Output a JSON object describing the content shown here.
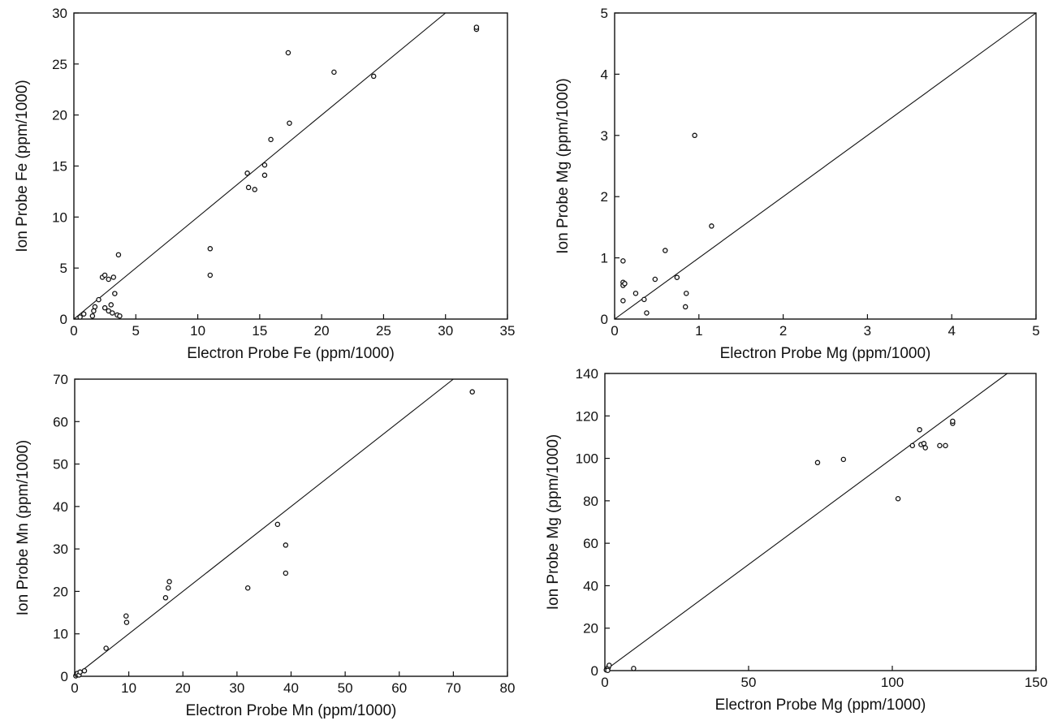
{
  "chart_data": [
    {
      "type": "scatter",
      "title": "",
      "xlabel": "Electron Probe Fe (ppm/1000)",
      "ylabel": "Ion Probe Fe (ppm/1000)",
      "xlim": [
        0,
        35
      ],
      "ylim": [
        0,
        30
      ],
      "xticks": [
        0,
        5,
        10,
        15,
        20,
        25,
        30,
        35
      ],
      "yticks": [
        0,
        5,
        10,
        15,
        20,
        25,
        30
      ],
      "grid": false,
      "reference_line": "y=x",
      "points": [
        [
          0.5,
          0.2
        ],
        [
          0.8,
          0.5
        ],
        [
          1.5,
          0.3
        ],
        [
          1.6,
          0.8
        ],
        [
          1.7,
          1.2
        ],
        [
          2.0,
          1.9
        ],
        [
          2.3,
          4.1
        ],
        [
          2.5,
          4.3
        ],
        [
          2.8,
          3.9
        ],
        [
          3.2,
          4.1
        ],
        [
          2.5,
          1.1
        ],
        [
          2.8,
          0.8
        ],
        [
          3.0,
          1.4
        ],
        [
          3.1,
          0.6
        ],
        [
          3.3,
          2.5
        ],
        [
          3.6,
          6.3
        ],
        [
          3.5,
          0.4
        ],
        [
          3.7,
          0.3
        ],
        [
          11.0,
          6.9
        ],
        [
          11.0,
          4.3
        ],
        [
          14.0,
          14.3
        ],
        [
          14.1,
          12.9
        ],
        [
          14.6,
          12.7
        ],
        [
          15.4,
          15.1
        ],
        [
          15.4,
          14.1
        ],
        [
          15.9,
          17.6
        ],
        [
          17.3,
          26.1
        ],
        [
          17.4,
          19.2
        ],
        [
          21.0,
          24.2
        ],
        [
          24.2,
          23.8
        ],
        [
          32.5,
          28.4
        ],
        [
          32.5,
          28.6
        ]
      ]
    },
    {
      "type": "scatter",
      "title": "",
      "xlabel": "Electron Probe Mg (ppm/1000)",
      "ylabel": "Ion Probe Mg (ppm/1000)",
      "xlim": [
        0,
        5
      ],
      "ylim": [
        0,
        5
      ],
      "xticks": [
        0,
        1,
        2,
        3,
        4,
        5
      ],
      "yticks": [
        0,
        1,
        2,
        3,
        4,
        5
      ],
      "grid": false,
      "reference_line": "y=x",
      "points": [
        [
          0.1,
          0.95
        ],
        [
          0.1,
          0.6
        ],
        [
          0.1,
          0.55
        ],
        [
          0.1,
          0.3
        ],
        [
          0.12,
          0.58
        ],
        [
          0.25,
          0.42
        ],
        [
          0.35,
          0.32
        ],
        [
          0.38,
          0.1
        ],
        [
          0.48,
          0.65
        ],
        [
          0.6,
          1.12
        ],
        [
          0.74,
          0.68
        ],
        [
          0.85,
          0.42
        ],
        [
          0.84,
          0.2
        ],
        [
          0.95,
          3.0
        ],
        [
          1.15,
          1.52
        ]
      ]
    },
    {
      "type": "scatter",
      "title": "",
      "xlabel": "Electron Probe Mn (ppm/1000)",
      "ylabel": "Ion Probe Mn (ppm/1000)",
      "xlim": [
        0,
        80
      ],
      "ylim": [
        0,
        70
      ],
      "xticks": [
        0,
        10,
        20,
        30,
        40,
        50,
        60,
        70,
        80
      ],
      "yticks": [
        0,
        10,
        20,
        30,
        40,
        50,
        60,
        70
      ],
      "grid": false,
      "reference_line": "y=x",
      "points": [
        [
          0.2,
          0.1
        ],
        [
          0.4,
          0.4
        ],
        [
          0.5,
          0.7
        ],
        [
          0.8,
          0.3
        ],
        [
          1.0,
          1.0
        ],
        [
          1.8,
          1.3
        ],
        [
          5.8,
          6.6
        ],
        [
          9.5,
          14.2
        ],
        [
          9.6,
          12.7
        ],
        [
          16.8,
          18.5
        ],
        [
          17.3,
          20.8
        ],
        [
          17.5,
          22.3
        ],
        [
          32.0,
          20.8
        ],
        [
          37.5,
          35.8
        ],
        [
          39.0,
          30.9
        ],
        [
          39.0,
          24.3
        ],
        [
          73.5,
          67.0
        ]
      ]
    },
    {
      "type": "scatter",
      "title": "",
      "xlabel": "Electron Probe Mg (ppm/1000)",
      "ylabel": "Ion Probe Mg (ppm/1000)",
      "xlim": [
        0,
        150
      ],
      "ylim": [
        0,
        140
      ],
      "xticks": [
        0,
        50,
        100,
        150
      ],
      "yticks": [
        0,
        20,
        40,
        60,
        80,
        100,
        120,
        140
      ],
      "grid": false,
      "reference_line": "y=x",
      "points": [
        [
          0.5,
          0.3
        ],
        [
          1.0,
          0.8
        ],
        [
          1.2,
          1.5
        ],
        [
          1.5,
          2.5
        ],
        [
          1.0,
          0.1
        ],
        [
          10.0,
          1.0
        ],
        [
          74.0,
          98.0
        ],
        [
          83.0,
          99.5
        ],
        [
          102.0,
          81.0
        ],
        [
          107.0,
          106.0
        ],
        [
          109.5,
          113.5
        ],
        [
          110.0,
          106.5
        ],
        [
          111.0,
          107.0
        ],
        [
          111.5,
          105.0
        ],
        [
          116.5,
          106.0
        ],
        [
          118.5,
          106.0
        ],
        [
          121.0,
          116.5
        ],
        [
          121.0,
          117.5
        ]
      ]
    }
  ]
}
